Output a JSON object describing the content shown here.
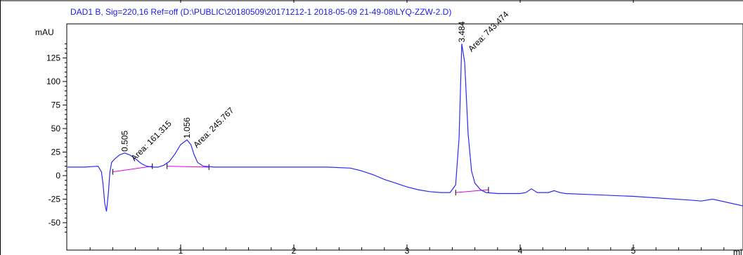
{
  "header": {
    "signal_info": "DAD1 B, Sig=220,16 Ref=off (D:\\PUBLIC\\20180509\\20171212-1 2018-05-09 21-49-08\\LYQ-ZZW-2.D)"
  },
  "colors": {
    "trace": "#2a2af0",
    "baseline": "#e000e0",
    "header_text": "#1a1af0",
    "axes": "#000000"
  },
  "chart_data": {
    "type": "line",
    "ylabel": "mAU",
    "xlabel_fragment": "mi",
    "xlim": [
      0,
      6.5
    ],
    "ylim": [
      -65,
      145
    ],
    "x_ticks": [
      1,
      2,
      3,
      4,
      5
    ],
    "x_tick_labels": [
      "1",
      "2",
      "3",
      "4",
      "5"
    ],
    "y_ticks": [
      -50,
      -25,
      0,
      25,
      50,
      75,
      100,
      125
    ],
    "y_tick_labels": [
      "-50",
      "-25",
      "0",
      "25",
      "50",
      "75",
      "100",
      "125"
    ],
    "series": [
      {
        "x": [
          0,
          0.15,
          0.27,
          0.3,
          0.315,
          0.33,
          0.345,
          0.36,
          0.375,
          0.39,
          0.42,
          0.46,
          0.505,
          0.55,
          0.6,
          0.65,
          0.7,
          0.75,
          0.8,
          0.85,
          0.9,
          0.95,
          1.0,
          1.056,
          1.09,
          1.12,
          1.15,
          1.2,
          1.3,
          1.5,
          2.0,
          2.3,
          2.5,
          2.6,
          2.7,
          2.8,
          2.9,
          3.0,
          3.1,
          3.2,
          3.3,
          3.38,
          3.43,
          3.46,
          3.484,
          3.51,
          3.54,
          3.57,
          3.6,
          3.65,
          3.7,
          3.8,
          3.9,
          4.0,
          4.05,
          4.1,
          4.15,
          4.25,
          4.3,
          4.35,
          4.4,
          4.6,
          5.0,
          5.5,
          5.6,
          5.7,
          6.0,
          6.3,
          6.5
        ],
        "y": [
          9,
          9,
          10,
          4,
          -10,
          -30,
          -38,
          -20,
          4,
          14,
          18,
          22,
          24,
          22,
          18,
          13,
          10,
          9,
          9,
          11,
          15,
          23,
          33,
          38,
          33,
          22,
          14,
          10,
          9,
          9,
          9,
          9,
          8,
          5,
          1,
          -4,
          -8,
          -12,
          -15,
          -17,
          -18,
          -18,
          -10,
          40,
          140,
          120,
          45,
          5,
          -8,
          -15,
          -18,
          -19,
          -19,
          -19,
          -18,
          -14,
          -18,
          -18,
          -16,
          -18,
          -19,
          -20,
          -22,
          -26,
          -27,
          -25,
          -33,
          -43,
          -51
        ]
      }
    ],
    "peaks": [
      {
        "rt": 0.505,
        "rt_label": "0.505",
        "area_label": "Area: 161.315",
        "apex": 24,
        "base_start": 0.4,
        "base_end": 0.75,
        "base_y_start": 4,
        "base_y_end": 10
      },
      {
        "rt": 1.056,
        "rt_label": "1.056",
        "area_label": "Area: 245.767",
        "apex": 38,
        "base_start": 0.88,
        "base_end": 1.25,
        "base_y_start": 10,
        "base_y_end": 9
      },
      {
        "rt": 3.484,
        "rt_label": "3.484",
        "area_label": "Area: 743.474",
        "apex": 140,
        "base_start": 3.43,
        "base_end": 3.72,
        "base_y_start": -18,
        "base_y_end": -15
      }
    ],
    "grid": false,
    "legend": "none"
  }
}
